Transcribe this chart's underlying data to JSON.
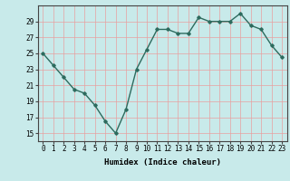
{
  "x": [
    0,
    1,
    2,
    3,
    4,
    5,
    6,
    7,
    8,
    9,
    10,
    11,
    12,
    13,
    14,
    15,
    16,
    17,
    18,
    19,
    20,
    21,
    22,
    23
  ],
  "y": [
    25,
    23.5,
    22,
    20.5,
    20,
    18.5,
    16.5,
    15,
    18,
    23,
    25.5,
    28,
    28,
    27.5,
    27.5,
    29.5,
    29,
    29,
    29,
    30,
    28.5,
    28,
    26,
    24.5
  ],
  "xlabel": "Humidex (Indice chaleur)",
  "ylim": [
    14,
    31
  ],
  "xlim": [
    -0.5,
    23.5
  ],
  "yticks": [
    15,
    17,
    19,
    21,
    23,
    25,
    27,
    29
  ],
  "xticks": [
    0,
    1,
    2,
    3,
    4,
    5,
    6,
    7,
    8,
    9,
    10,
    11,
    12,
    13,
    14,
    15,
    16,
    17,
    18,
    19,
    20,
    21,
    22,
    23
  ],
  "line_color": "#2d6b5e",
  "marker": "D",
  "marker_size": 1.8,
  "bg_color": "#c8eaea",
  "grid_color": "#e8a0a0",
  "label_fontsize": 6.5,
  "tick_fontsize": 5.5,
  "linewidth": 1.0
}
